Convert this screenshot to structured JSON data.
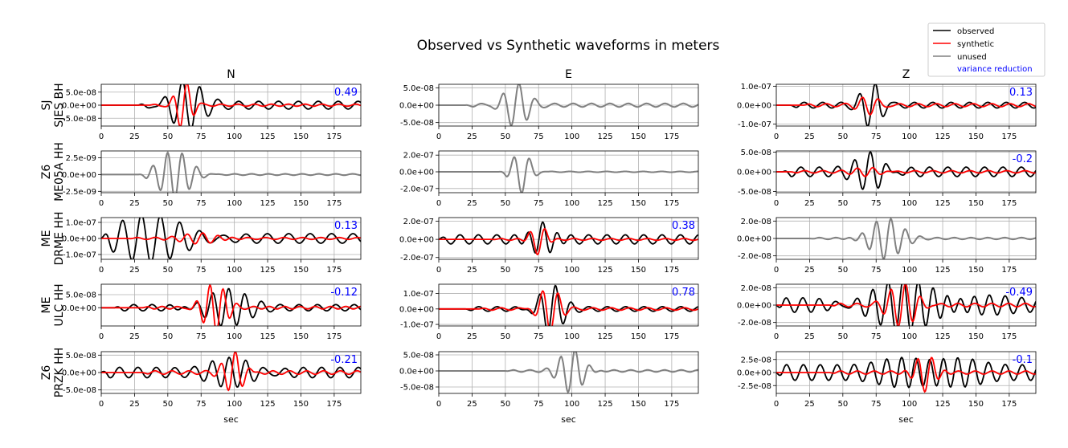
{
  "title": "Observed vs Synthetic waveforms in meters",
  "columns": [
    "N",
    "E",
    "Z"
  ],
  "xlabel": "sec",
  "x_ticks": [
    0,
    25,
    50,
    75,
    100,
    125,
    150,
    175
  ],
  "xlim": [
    0,
    195
  ],
  "legend": {
    "position": "top-right",
    "entries": [
      {
        "label": "observed",
        "color": "#000000",
        "type": "line"
      },
      {
        "label": "synthetic",
        "color": "#ff0000",
        "type": "line"
      },
      {
        "label": "unused",
        "color": "#808080",
        "type": "line"
      },
      {
        "label": "variance reduction",
        "color": "#0000ff",
        "type": "text"
      }
    ]
  },
  "colors": {
    "observed": "#000000",
    "synthetic": "#ff0000",
    "unused": "#808080",
    "vr": "#0000ff"
  },
  "rows": [
    {
      "label_lines": [
        "SJ",
        "SJES BH"
      ],
      "panels": [
        {
          "column": "N",
          "used": true,
          "vr": "0.49",
          "ylim": [
            -8e-08,
            8e-08
          ],
          "ytick_values": [
            5e-08,
            0,
            -5e-08
          ],
          "ytick_labels": [
            "5.0e-08",
            "0.0e+00",
            "-5.0e-08"
          ],
          "observed": {
            "start": 28,
            "center": 63,
            "width": 16,
            "amp": 9e-08,
            "period": 13,
            "coda": 1.5e-08,
            "seed": 1
          },
          "synthetic": {
            "start": 35,
            "center": 62,
            "width": 8,
            "amp": 9e-08,
            "period": 11,
            "coda": 4e-09,
            "seed": 2
          }
        },
        {
          "column": "E",
          "used": false,
          "vr": "",
          "ylim": [
            -6e-08,
            6e-08
          ],
          "ytick_values": [
            5e-08,
            0,
            -5e-08
          ],
          "ytick_labels": [
            "5.0e-08",
            "0.0e+00",
            "-5.0e-08"
          ],
          "unused": {
            "start": 20,
            "center": 58,
            "width": 12,
            "amp": 6e-08,
            "period": 12,
            "coda": 5e-09,
            "seed": 3
          }
        },
        {
          "column": "Z",
          "used": true,
          "vr": "0.13",
          "ylim": [
            -1.1e-07,
            1.1e-07
          ],
          "ytick_values": [
            1e-07,
            0,
            -1e-07
          ],
          "ytick_labels": [
            "1.0e-07",
            "0.0e+00",
            "-1.0e-07"
          ],
          "observed": {
            "start": 10,
            "center": 72,
            "width": 10,
            "amp": 1.1e-07,
            "period": 12,
            "coda": 1.5e-08,
            "seed": 4
          },
          "synthetic": {
            "start": 20,
            "center": 70,
            "width": 10,
            "amp": 4.5e-08,
            "period": 12,
            "coda": 8e-09,
            "seed": 5
          }
        }
      ]
    },
    {
      "label_lines": [
        "Z6",
        "ME05A HH"
      ],
      "panels": [
        {
          "column": "N",
          "used": false,
          "vr": "",
          "ylim": [
            -2.7e-09,
            3.5e-09
          ],
          "ytick_values": [
            2.5e-09,
            0,
            -2.5e-09
          ],
          "ytick_labels": [
            "2.5e-09",
            "0.0e+00",
            "-2.5e-09"
          ],
          "unused": {
            "start": 28,
            "center": 55,
            "width": 16,
            "amp": 3.5e-09,
            "period": 11,
            "coda": 1e-10,
            "seed": 6
          }
        },
        {
          "column": "E",
          "used": false,
          "vr": "",
          "ylim": [
            -2.5e-07,
            2.5e-07
          ],
          "ytick_values": [
            2e-07,
            0,
            -2e-07
          ],
          "ytick_labels": [
            "2.0e-07",
            "0.0e+00",
            "-2.0e-07"
          ],
          "unused": {
            "start": 45,
            "center": 62,
            "width": 9,
            "amp": 2.5e-07,
            "period": 12,
            "coda": 5e-09,
            "seed": 7
          }
        },
        {
          "column": "Z",
          "used": true,
          "vr": "-0.2",
          "ylim": [
            -5.3e-08,
            5.3e-08
          ],
          "ytick_values": [
            5e-08,
            0,
            -5e-08
          ],
          "ytick_labels": [
            "5.0e-08",
            "0.0e+00",
            "-5.0e-08"
          ],
          "observed": {
            "start": 5,
            "center": 72,
            "width": 14,
            "amp": 5e-08,
            "period": 12,
            "coda": 1.2e-08,
            "seed": 8
          },
          "synthetic": {
            "start": 10,
            "center": 70,
            "width": 14,
            "amp": 1.2e-08,
            "period": 12,
            "coda": 3e-09,
            "seed": 9
          }
        }
      ]
    },
    {
      "label_lines": [
        "ME",
        "DRME HH"
      ],
      "panels": [
        {
          "column": "N",
          "used": true,
          "vr": "0.13",
          "ylim": [
            -1.3e-07,
            1.3e-07
          ],
          "ytick_values": [
            1e-07,
            0,
            -1e-07
          ],
          "ytick_labels": [
            "1.0e-07",
            "0.0e+00",
            "-1.0e-07"
          ],
          "observed": {
            "start": 0,
            "center": 30,
            "width": 40,
            "amp": 1.3e-07,
            "period": 14,
            "coda": 3e-08,
            "seed": 10
          },
          "synthetic": {
            "start": 20,
            "center": 75,
            "width": 18,
            "amp": 4e-08,
            "period": 12,
            "coda": 6e-09,
            "seed": 11
          }
        },
        {
          "column": "E",
          "used": true,
          "vr": "0.38",
          "ylim": [
            -2.2e-07,
            2.4e-07
          ],
          "ytick_values": [
            2e-07,
            0,
            -2e-07
          ],
          "ytick_labels": [
            "2.0e-07",
            "0.0e+00",
            "-2.0e-07"
          ],
          "observed": {
            "start": 0,
            "center": 78,
            "width": 12,
            "amp": 2.4e-07,
            "period": 12,
            "coda": 5e-08,
            "seed": 12
          },
          "synthetic": {
            "start": 40,
            "center": 75,
            "width": 8,
            "amp": 1.8e-07,
            "period": 12,
            "coda": 1e-08,
            "seed": 13
          }
        },
        {
          "column": "Z",
          "used": false,
          "vr": "",
          "ylim": [
            -2.4e-08,
            2.4e-08
          ],
          "ytick_values": [
            2e-08,
            0,
            -2e-08
          ],
          "ytick_labels": [
            "2.0e-08",
            "0.0e+00",
            "-2.0e-08"
          ],
          "unused": {
            "start": 25,
            "center": 82,
            "width": 16,
            "amp": 2.4e-08,
            "period": 11,
            "coda": 1e-09,
            "seed": 14
          }
        }
      ]
    },
    {
      "label_lines": [
        "ME",
        "ULC HH"
      ],
      "panels": [
        {
          "column": "N",
          "used": true,
          "vr": "-0.12",
          "ylim": [
            -7e-08,
            9e-08
          ],
          "ytick_values": [
            5e-08,
            0
          ],
          "ytick_labels": [
            "5.0e-08",
            "0.0e+00"
          ],
          "observed": {
            "start": 10,
            "center": 92,
            "width": 22,
            "amp": 7e-08,
            "period": 12,
            "coda": 1.2e-08,
            "seed": 15
          },
          "synthetic": {
            "start": 30,
            "center": 85,
            "width": 12,
            "amp": 9e-08,
            "period": 10,
            "coda": 5e-09,
            "seed": 16
          }
        },
        {
          "column": "E",
          "used": true,
          "vr": "0.78",
          "ylim": [
            -1.1e-07,
            1.6e-07
          ],
          "ytick_values": [
            1e-07,
            0,
            -1e-07
          ],
          "ytick_labels": [
            "1.0e-07",
            "0.0e+00",
            "-1.0e-07"
          ],
          "observed": {
            "start": 20,
            "center": 84,
            "width": 12,
            "amp": 1.6e-07,
            "period": 12,
            "coda": 1.5e-08,
            "seed": 17
          },
          "synthetic": {
            "start": 30,
            "center": 83,
            "width": 10,
            "amp": 1.5e-07,
            "period": 12,
            "coda": 8e-09,
            "seed": 18
          }
        },
        {
          "column": "Z",
          "used": true,
          "vr": "-0.49",
          "ylim": [
            -2.4e-08,
            2.4e-08
          ],
          "ytick_values": [
            2e-08,
            0,
            -2e-08
          ],
          "ytick_labels": [
            "2.0e-08",
            "0.0e+00",
            "-2.0e-08"
          ],
          "observed": {
            "start": 0,
            "center": 105,
            "width": 45,
            "amp": 2.4e-08,
            "period": 11,
            "coda": 8e-09,
            "seed": 19
          },
          "synthetic": {
            "start": 40,
            "center": 95,
            "width": 14,
            "amp": 2.4e-08,
            "period": 11,
            "coda": 2e-09,
            "seed": 20
          }
        }
      ]
    },
    {
      "label_lines": [
        "Z6",
        "PRZK HH"
      ],
      "panels": [
        {
          "column": "N",
          "used": true,
          "vr": "-0.21",
          "ylim": [
            -6e-08,
            6e-08
          ],
          "ytick_values": [
            5e-08,
            0,
            -5e-08
          ],
          "ytick_labels": [
            "5.0e-08",
            "0.0e+00",
            "-5.0e-08"
          ],
          "observed": {
            "start": 0,
            "center": 100,
            "width": 25,
            "amp": 3e-08,
            "period": 12,
            "coda": 1.5e-08,
            "seed": 21
          },
          "synthetic": {
            "start": 30,
            "center": 100,
            "width": 10,
            "amp": 6e-08,
            "period": 11,
            "coda": 5e-09,
            "seed": 22
          }
        },
        {
          "column": "E",
          "used": false,
          "vr": "",
          "ylim": [
            -7e-08,
            6e-08
          ],
          "ytick_values": [
            5e-08,
            0,
            -5e-08
          ],
          "ytick_labels": [
            "5.0e-08",
            "0.0e+00",
            "-5.0e-08"
          ],
          "unused": {
            "start": 50,
            "center": 100,
            "width": 12,
            "amp": 7e-08,
            "period": 11,
            "coda": 3e-09,
            "seed": 23
          }
        },
        {
          "column": "Z",
          "used": true,
          "vr": "-0.1",
          "ylim": [
            -4e-08,
            4e-08
          ],
          "ytick_values": [
            2.5e-08,
            0,
            -2.5e-08
          ],
          "ytick_labels": [
            "2.5e-08",
            "0.0e+00",
            "-2.5e-08"
          ],
          "observed": {
            "start": 0,
            "center": 115,
            "width": 30,
            "amp": 4e-08,
            "period": 11,
            "coda": 1.5e-08,
            "seed": 24
          },
          "synthetic": {
            "start": 40,
            "center": 112,
            "width": 10,
            "amp": 4e-08,
            "period": 11,
            "coda": 3e-09,
            "seed": 25
          }
        }
      ]
    }
  ],
  "chart_data": {
    "type": "line",
    "title": "Observed vs Synthetic waveforms in meters",
    "xlabel": "sec",
    "xlim": [
      0,
      195
    ],
    "grid": true,
    "legend_placement": "top-right",
    "series_names": [
      "observed",
      "synthetic",
      "unused"
    ],
    "panels": [
      {
        "station": "SJ SJES BH",
        "component": "N",
        "variance_reduction": 0.49,
        "used": true
      },
      {
        "station": "SJ SJES BH",
        "component": "E",
        "used": false
      },
      {
        "station": "SJ SJES BH",
        "component": "Z",
        "variance_reduction": 0.13,
        "used": true
      },
      {
        "station": "Z6 ME05A HH",
        "component": "N",
        "used": false
      },
      {
        "station": "Z6 ME05A HH",
        "component": "E",
        "used": false
      },
      {
        "station": "Z6 ME05A HH",
        "component": "Z",
        "variance_reduction": -0.2,
        "used": true
      },
      {
        "station": "ME DRME HH",
        "component": "N",
        "variance_reduction": 0.13,
        "used": true
      },
      {
        "station": "ME DRME HH",
        "component": "E",
        "variance_reduction": 0.38,
        "used": true
      },
      {
        "station": "ME DRME HH",
        "component": "Z",
        "used": false
      },
      {
        "station": "ME ULC HH",
        "component": "N",
        "variance_reduction": -0.12,
        "used": true
      },
      {
        "station": "ME ULC HH",
        "component": "E",
        "variance_reduction": 0.78,
        "used": true
      },
      {
        "station": "ME ULC HH",
        "component": "Z",
        "variance_reduction": -0.49,
        "used": true
      },
      {
        "station": "Z6 PRZK HH",
        "component": "N",
        "variance_reduction": -0.21,
        "used": true
      },
      {
        "station": "Z6 PRZK HH",
        "component": "E",
        "used": false
      },
      {
        "station": "Z6 PRZK HH",
        "component": "Z",
        "variance_reduction": -0.1,
        "used": true
      }
    ]
  }
}
